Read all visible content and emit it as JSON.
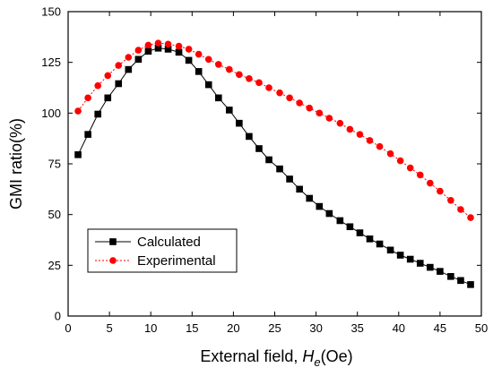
{
  "chart_data": {
    "type": "line",
    "title": "",
    "xlabel_prefix": "External field, ",
    "xlabel_symbol": "H",
    "xlabel_subscript": "e",
    "xlabel_unit": "(Oe)",
    "ylabel": "GMI ratio(%)",
    "xlim": [
      0,
      50
    ],
    "ylim": [
      0,
      150
    ],
    "x_ticks": [
      "0",
      "5",
      "10",
      "15",
      "20",
      "25",
      "30",
      "35",
      "40",
      "45",
      "50"
    ],
    "y_ticks": [
      "0",
      "25",
      "50",
      "75",
      "100",
      "125",
      "150"
    ],
    "grid": false,
    "legend_position": "bottom-left",
    "series": [
      {
        "name": "Calculated",
        "color": "#000000",
        "marker": "square",
        "x": [
          1.2,
          2.4,
          3.6,
          4.8,
          6.1,
          7.3,
          8.5,
          9.7,
          10.9,
          12.1,
          13.4,
          14.6,
          15.8,
          17.0,
          18.2,
          19.5,
          20.7,
          21.9,
          23.1,
          24.3,
          25.6,
          26.8,
          28.0,
          29.2,
          30.4,
          31.6,
          32.9,
          34.1,
          35.3,
          36.5,
          37.7,
          39.0,
          40.2,
          41.4,
          42.6,
          43.8,
          45.0,
          46.3,
          47.5,
          48.7
        ],
        "y": [
          79.5,
          89.5,
          99.5,
          107.5,
          114.5,
          121.5,
          126.5,
          130.5,
          132.0,
          131.5,
          130.0,
          126.0,
          120.5,
          114.0,
          107.5,
          101.5,
          95.0,
          88.5,
          82.5,
          77.0,
          72.5,
          67.5,
          62.5,
          58.0,
          54.0,
          50.5,
          47.0,
          44.0,
          41.0,
          38.0,
          35.5,
          32.5,
          30.0,
          28.0,
          26.0,
          24.0,
          22.0,
          19.5,
          17.5,
          15.5
        ]
      },
      {
        "name": "Experimental",
        "color": "#ff0000",
        "marker": "circle",
        "x": [
          1.2,
          2.4,
          3.6,
          4.8,
          6.1,
          7.3,
          8.5,
          9.7,
          10.9,
          12.1,
          13.4,
          14.6,
          15.8,
          17.0,
          18.2,
          19.5,
          20.7,
          21.9,
          23.1,
          24.3,
          25.6,
          26.8,
          28.0,
          29.2,
          30.4,
          31.6,
          32.9,
          34.1,
          35.3,
          36.5,
          37.7,
          39.0,
          40.2,
          41.4,
          42.6,
          43.8,
          45.0,
          46.3,
          47.5,
          48.7
        ],
        "y": [
          101.0,
          107.5,
          113.5,
          118.5,
          123.5,
          127.5,
          131.0,
          133.5,
          134.5,
          134.0,
          133.0,
          131.5,
          129.0,
          126.5,
          124.0,
          121.5,
          119.0,
          117.0,
          115.0,
          112.5,
          110.0,
          107.5,
          105.0,
          102.5,
          100.0,
          97.5,
          95.0,
          92.0,
          89.5,
          86.5,
          83.5,
          80.0,
          76.5,
          73.0,
          69.5,
          65.5,
          61.5,
          57.0,
          52.5,
          48.5
        ]
      }
    ]
  }
}
